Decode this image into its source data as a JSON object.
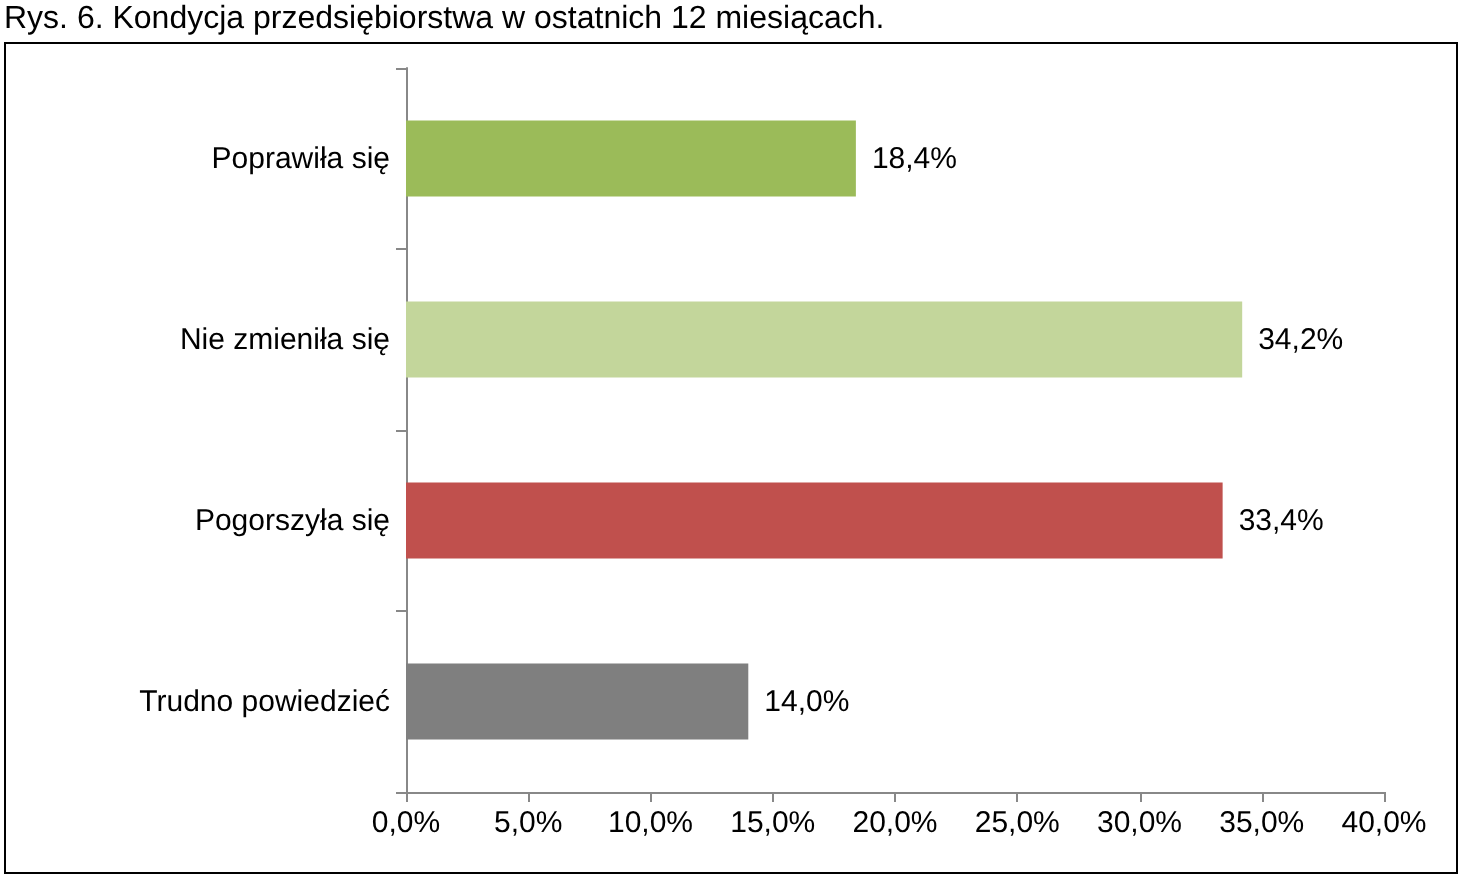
{
  "chart_data": {
    "type": "bar",
    "orientation": "horizontal",
    "title": "Rys. 6. Kondycja przedsiębiorstwa w ostatnich 12 miesiącach.",
    "categories": [
      "Poprawiła się",
      "Nie zmieniła się",
      "Pogorszyła się",
      "Trudno powiedzieć"
    ],
    "values": [
      18.4,
      34.2,
      33.4,
      14.0
    ],
    "colors": [
      "#9bbb59",
      "#c3d69b",
      "#c0504d",
      "#7f7f7f"
    ],
    "value_labels": [
      "18,4%",
      "34,2%",
      "33,4%",
      "14,0%"
    ],
    "xlim": [
      0,
      40
    ],
    "xticks": [
      {
        "value": 0,
        "label": "0,0%"
      },
      {
        "value": 5,
        "label": "5,0%"
      },
      {
        "value": 10,
        "label": "10,0%"
      },
      {
        "value": 15,
        "label": "15,0%"
      },
      {
        "value": 20,
        "label": "20,0%"
      },
      {
        "value": 25,
        "label": "25,0%"
      },
      {
        "value": 30,
        "label": "30,0%"
      },
      {
        "value": 35,
        "label": "35,0%"
      },
      {
        "value": 40,
        "label": "40,0%"
      }
    ],
    "grid": false
  }
}
